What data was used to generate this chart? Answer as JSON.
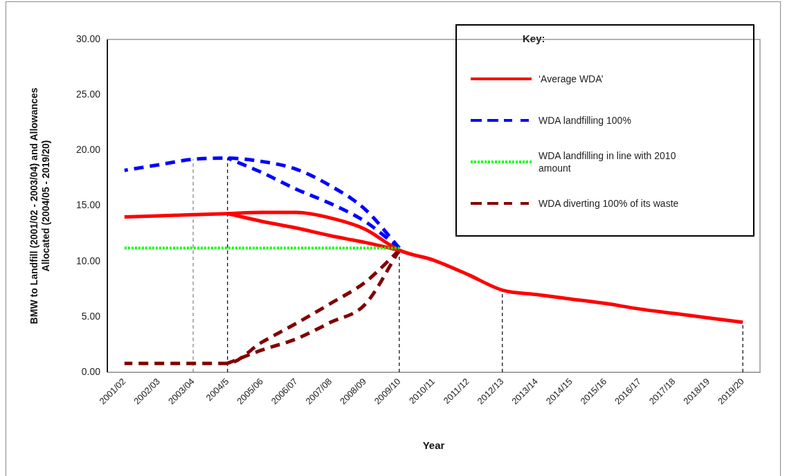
{
  "chart_data": {
    "type": "line",
    "xlabel": "Year",
    "ylabel": "BMW to Landfill (2001/02 - 2003/04) and Allowances\nAllocated (2004/05 - 2019/20)",
    "categories": [
      "2001/02",
      "2002/03",
      "2003/04",
      "2004/5",
      "2005/06",
      "2006/07",
      "2007/08",
      "2008/09",
      "2009/10",
      "2010/11",
      "2011/12",
      "2012/13",
      "2013/14",
      "2014/15",
      "2015/16",
      "2016/17",
      "2017/18",
      "2018/19",
      "2019/20"
    ],
    "series": [
      {
        "name": "‘Average WDA’",
        "color": "#ff0000",
        "line_style": "solid",
        "values": [
          14.0,
          14.1,
          14.2,
          14.3,
          14.4,
          14.4,
          13.9,
          12.9,
          11.0,
          10.1,
          8.8,
          7.4,
          7.0,
          6.6,
          6.2,
          5.7,
          5.3,
          4.9,
          4.5
        ]
      },
      {
        "color": "#ff0000",
        "line_style": "solid",
        "values": [
          null,
          null,
          null,
          14.3,
          13.6,
          13.0,
          12.3,
          11.7,
          11.0,
          null,
          null,
          null,
          null,
          null,
          null,
          null,
          null,
          null,
          null
        ]
      },
      {
        "name": "WDA landfilling 100%",
        "color": "#0000ff",
        "line_style": "dashed",
        "values": [
          18.2,
          18.7,
          19.2,
          19.3,
          19.0,
          18.3,
          16.8,
          14.7,
          11.2,
          null,
          null,
          null,
          null,
          null,
          null,
          null,
          null,
          null,
          null
        ]
      },
      {
        "color": "#0000ff",
        "line_style": "dashed",
        "values": [
          null,
          null,
          null,
          19.3,
          18.0,
          16.5,
          15.2,
          13.6,
          11.2,
          null,
          null,
          null,
          null,
          null,
          null,
          null,
          null,
          null,
          null
        ]
      },
      {
        "name": "WDA landfilling in line with 2010 amount",
        "color": "#00ff00",
        "line_style": "dotted",
        "values": [
          11.2,
          11.2,
          11.2,
          11.2,
          11.2,
          11.2,
          11.2,
          11.2,
          11.2,
          null,
          null,
          null,
          null,
          null,
          null,
          null,
          null,
          null,
          null
        ]
      },
      {
        "name": "WDA diverting 100% of its waste",
        "color": "#800000",
        "line_style": "dashed",
        "values": [
          0.8,
          0.8,
          0.8,
          0.8,
          2.7,
          4.4,
          6.2,
          8.1,
          11.0,
          null,
          null,
          null,
          null,
          null,
          null,
          null,
          null,
          null,
          null
        ]
      },
      {
        "color": "#800000",
        "line_style": "dashed",
        "values": [
          null,
          null,
          null,
          0.8,
          2.0,
          3.0,
          4.5,
          6.1,
          11.0,
          null,
          null,
          null,
          null,
          null,
          null,
          null,
          null,
          null,
          null
        ]
      }
    ],
    "ylim": [
      0,
      30
    ],
    "yticks": [
      {
        "value": 0,
        "label": "0.00"
      },
      {
        "value": 5,
        "label": "5.00"
      },
      {
        "value": 10,
        "label": "10.00"
      },
      {
        "value": 15,
        "label": "15.00"
      },
      {
        "value": 20,
        "label": "20.00"
      },
      {
        "value": 25,
        "label": "25.00"
      },
      {
        "value": 30,
        "label": "30.00"
      }
    ],
    "ref_lines": [
      {
        "axis": "x",
        "value": "2003/04",
        "color": "#808080",
        "line_style": "dashed"
      },
      {
        "axis": "x",
        "value": "2004/5",
        "color": "#000000",
        "line_style": "dashed"
      },
      {
        "axis": "x",
        "value": "2009/10",
        "color": "#000000",
        "line_style": "dashed"
      },
      {
        "axis": "x",
        "value": "2012/13",
        "color": "#000000",
        "line_style": "dashed"
      },
      {
        "axis": "x",
        "value": "2019/20",
        "color": "#000000",
        "line_style": "dashed"
      }
    ],
    "legend": "top right",
    "legend_title": "Key:",
    "marker": "none",
    "grid": false
  }
}
